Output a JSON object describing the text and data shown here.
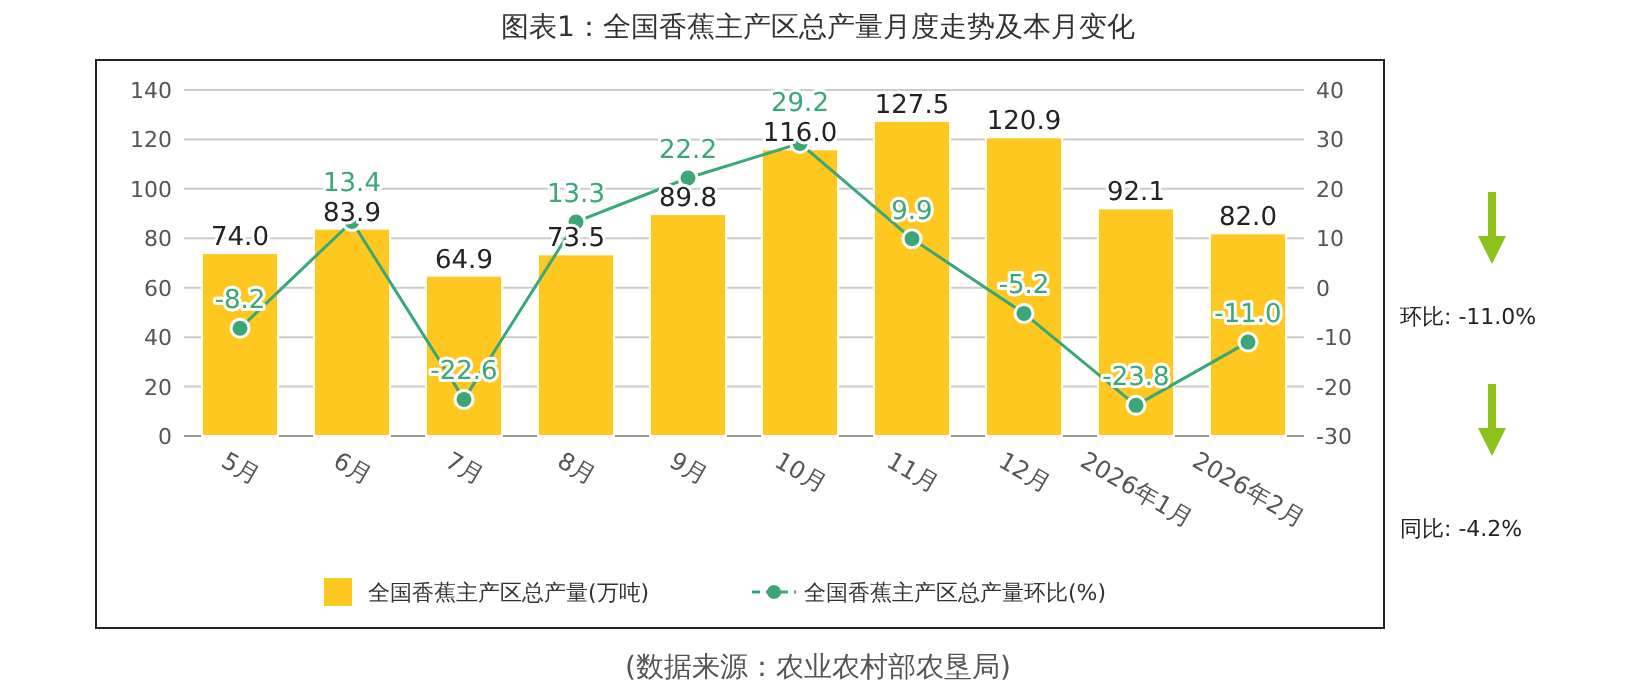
{
  "chart_data": {
    "type": "bar",
    "title": "图表1：全国香蕉主产区总产量月度走势及本月变化",
    "categories": [
      "5月",
      "6月",
      "7月",
      "8月",
      "9月",
      "10月",
      "11月",
      "12月",
      "2026年1月",
      "2026年2月"
    ],
    "series": [
      {
        "name": "全国香蕉主产区总产量(万吨)",
        "color": "#ffc820",
        "values": [
          74.0,
          83.9,
          64.9,
          73.5,
          89.8,
          116.0,
          127.5,
          120.9,
          92.1,
          82.0
        ],
        "value_labels": [
          "74.0",
          "83.9",
          "64.9",
          "73.5",
          "89.8",
          "116.0",
          "127.5",
          "120.9",
          "92.1",
          "82.0"
        ]
      },
      {
        "name": "全国香蕉主产区总产量环比(%)",
        "type": "line",
        "axis": "y2",
        "color": "#3aa776",
        "values": [
          -8.2,
          13.4,
          -22.6,
          13.3,
          22.2,
          29.2,
          9.9,
          -5.2,
          -23.8,
          -11.0
        ],
        "value_labels": [
          "-8.2",
          "13.4",
          "-22.6",
          "13.3",
          "22.2",
          "29.2",
          "9.9",
          "-5.2",
          "-23.8",
          "-11.0"
        ]
      }
    ],
    "ylim": [
      0,
      140
    ],
    "yticks": [
      0,
      20,
      40,
      60,
      80,
      100,
      120,
      140
    ],
    "y2lim": [
      -30,
      40
    ],
    "y2ticks": [
      -30,
      -20,
      -10,
      0,
      10,
      20,
      30,
      40
    ],
    "grid": "y",
    "legend": "bottom",
    "marker": "circle",
    "annotations": [
      "环比:  -11.0%",
      "同比:  -4.2%",
      "(数据来源：农业农村部农垦局)"
    ]
  }
}
